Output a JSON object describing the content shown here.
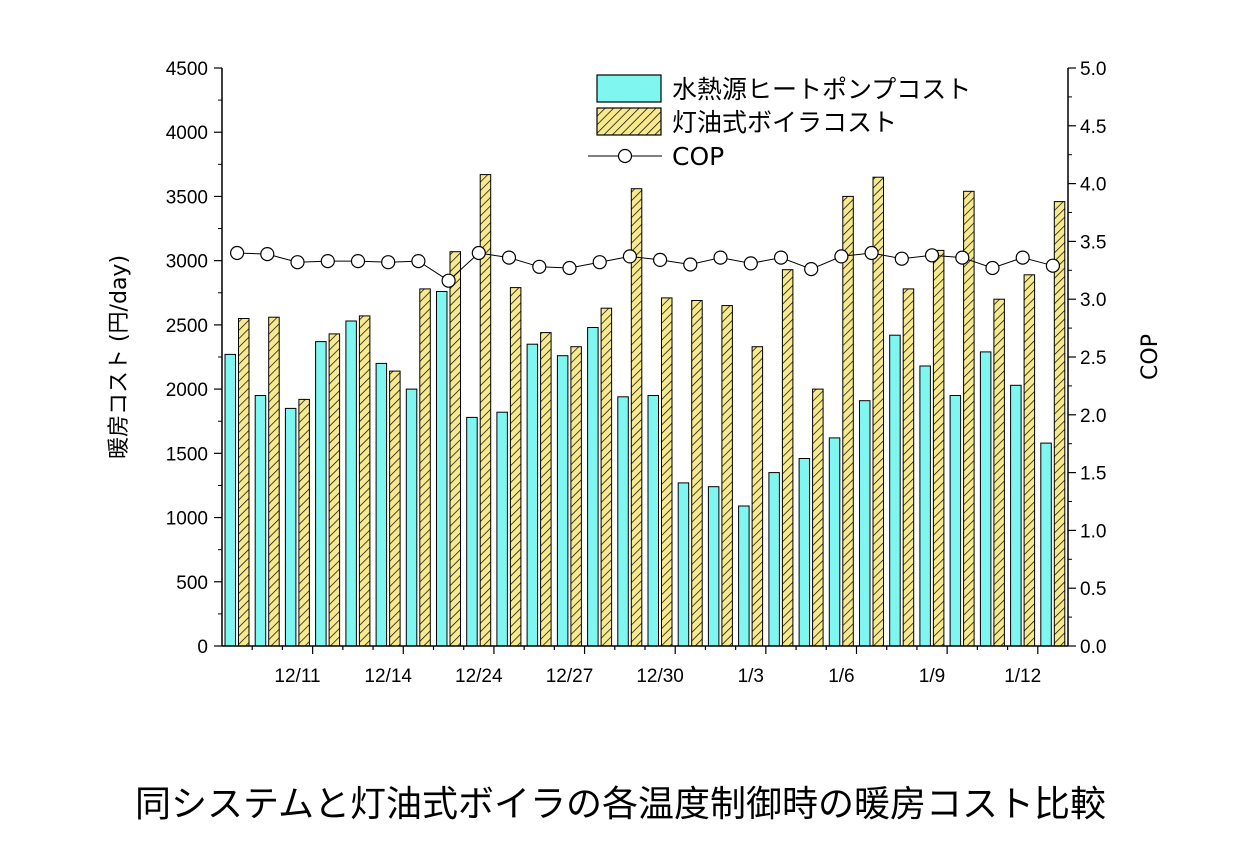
{
  "caption": "同システムと灯油式ボイラの各温度制御時の暖房コスト比較",
  "chart_data": {
    "type": "bar",
    "title": "",
    "ylabel": "暖房コスト (円/day)",
    "y2label": "COP",
    "ylim": [
      0,
      4500
    ],
    "y2lim": [
      0,
      5.0
    ],
    "yticks": [
      "0",
      "500",
      "1000",
      "1500",
      "2000",
      "2500",
      "3000",
      "3500",
      "4000",
      "4500"
    ],
    "y2ticks": [
      "0.0",
      "0.5",
      "1.0",
      "1.5",
      "2.0",
      "2.5",
      "3.0",
      "3.5",
      "4.0",
      "4.5",
      "5.0"
    ],
    "xtick_labels": [
      {
        "label": "12/11",
        "index": 2
      },
      {
        "label": "12/14",
        "index": 5
      },
      {
        "label": "12/24",
        "index": 8
      },
      {
        "label": "12/27",
        "index": 11
      },
      {
        "label": "12/30",
        "index": 14
      },
      {
        "label": "1/3",
        "index": 17
      },
      {
        "label": "1/6",
        "index": 20
      },
      {
        "label": "1/9",
        "index": 23
      },
      {
        "label": "1/12",
        "index": 26
      }
    ],
    "legend_position": "top-right",
    "series": [
      {
        "name": "水熱源ヒートポンプコスト",
        "kind": "bar",
        "color": "#7ff7f0",
        "values": [
          2270,
          1950,
          1850,
          2370,
          2530,
          2200,
          2000,
          2760,
          1780,
          1820,
          2350,
          2260,
          2480,
          1940,
          1950,
          1270,
          1240,
          1090,
          1350,
          1460,
          1620,
          1910,
          2420,
          2180,
          1950,
          2290,
          2030,
          1580
        ]
      },
      {
        "name": "灯油式ボイラコスト",
        "kind": "bar",
        "color": "#f6e98e",
        "hatch": true,
        "values": [
          2550,
          2560,
          1920,
          2430,
          2570,
          2140,
          2780,
          3070,
          3670,
          2790,
          2440,
          2330,
          2630,
          3560,
          2710,
          2690,
          2650,
          2330,
          2930,
          2000,
          3500,
          3650,
          2780,
          3080,
          3540,
          2700,
          2890,
          3460
        ]
      },
      {
        "name": "COP",
        "kind": "line",
        "axis": "right",
        "color": "#000000",
        "values": [
          3.4,
          3.39,
          3.32,
          3.33,
          3.33,
          3.32,
          3.33,
          3.16,
          3.4,
          3.36,
          3.28,
          3.27,
          3.32,
          3.37,
          3.34,
          3.3,
          3.36,
          3.31,
          3.36,
          3.26,
          3.37,
          3.4,
          3.35,
          3.38,
          3.36,
          3.27,
          3.36,
          3.29
        ]
      }
    ]
  }
}
